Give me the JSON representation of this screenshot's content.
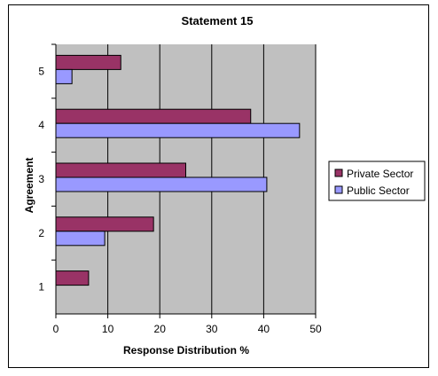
{
  "chart_data": {
    "type": "bar",
    "orientation": "horizontal",
    "title": "Statement 15",
    "xlabel": "Response Distribution %",
    "ylabel": "Agreement",
    "categories": [
      "1",
      "2",
      "3",
      "4",
      "5"
    ],
    "series": [
      {
        "name": "Private Sector",
        "color": "#993366",
        "values": [
          6.3,
          18.8,
          25.0,
          37.5,
          12.5
        ]
      },
      {
        "name": "Public Sector",
        "color": "#9999ff",
        "values": [
          0,
          9.4,
          40.6,
          46.9,
          3.1
        ]
      }
    ],
    "xlim": [
      0,
      50
    ],
    "xticks": [
      "0",
      "10",
      "20",
      "30",
      "40",
      "50"
    ],
    "plot_background": "#c0c0c0",
    "grid": true,
    "legend_position": "right"
  }
}
